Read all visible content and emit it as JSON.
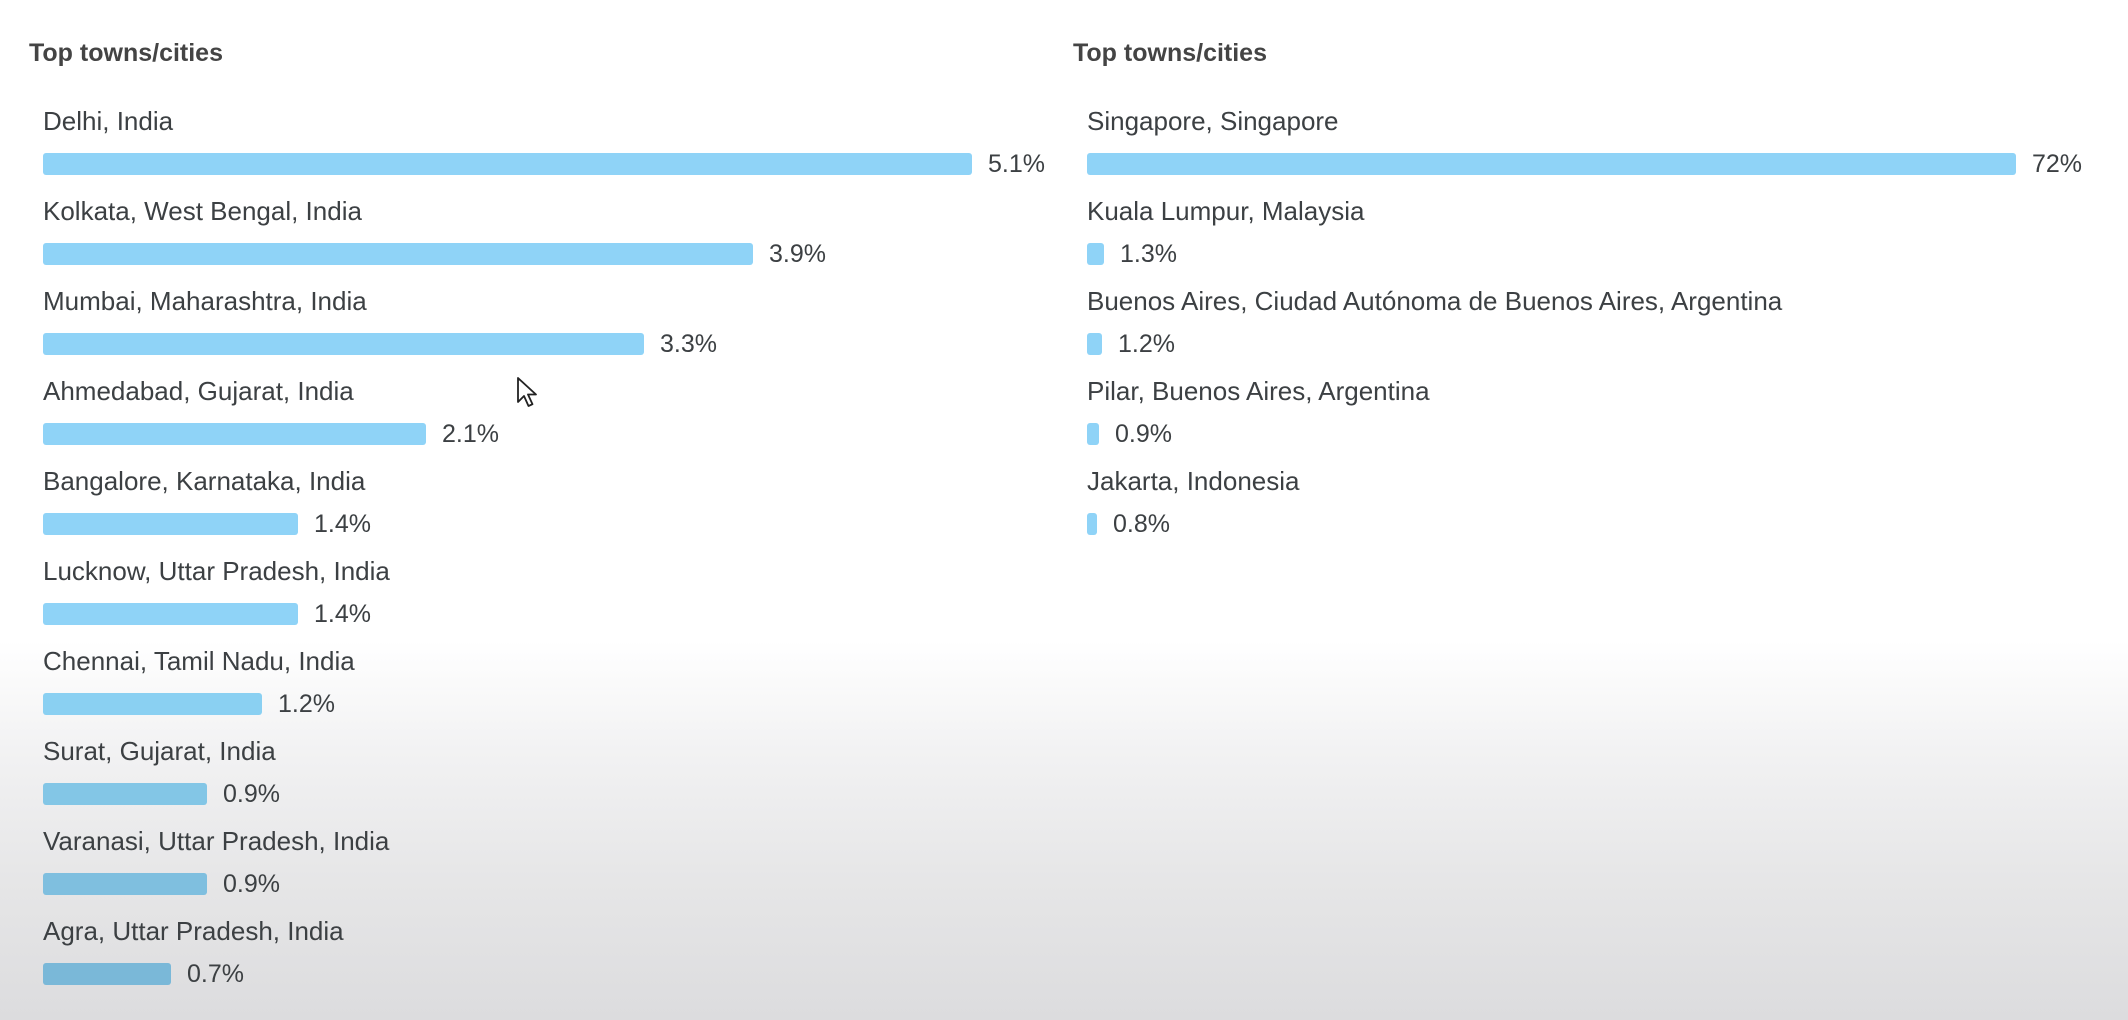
{
  "left_panel": {
    "title": "Top towns/cities",
    "items": [
      {
        "city": "Delhi, India",
        "value_label": "5.1%",
        "value": 5.1,
        "bar_color": "#8fd3f7"
      },
      {
        "city": "Kolkata, West Bengal, India",
        "value_label": "3.9%",
        "value": 3.9,
        "bar_color": "#8fd3f7"
      },
      {
        "city": "Mumbai, Maharashtra, India",
        "value_label": "3.3%",
        "value": 3.3,
        "bar_color": "#8fd3f7"
      },
      {
        "city": "Ahmedabad, Gujarat, India",
        "value_label": "2.1%",
        "value": 2.1,
        "bar_color": "#8fd3f7"
      },
      {
        "city": "Bangalore, Karnataka, India",
        "value_label": "1.4%",
        "value": 1.4,
        "bar_color": "#8fd3f7"
      },
      {
        "city": "Lucknow, Uttar Pradesh, India",
        "value_label": "1.4%",
        "value": 1.4,
        "bar_color": "#8fd3f7"
      },
      {
        "city": "Chennai, Tamil Nadu, India",
        "value_label": "1.2%",
        "value": 1.2,
        "bar_color": "#8ad0f2"
      },
      {
        "city": "Surat, Gujarat, India",
        "value_label": "0.9%",
        "value": 0.9,
        "bar_color": "#83c6e6"
      },
      {
        "city": "Varanasi, Uttar Pradesh, India",
        "value_label": "0.9%",
        "value": 0.9,
        "bar_color": "#7fbfdf"
      },
      {
        "city": "Agra, Uttar Pradesh, India",
        "value_label": "0.7%",
        "value": 0.7,
        "bar_color": "#7ab8d8"
      }
    ]
  },
  "right_panel": {
    "title": "Top towns/cities",
    "items": [
      {
        "city": "Singapore, Singapore",
        "value_label": "72%",
        "value": 72,
        "bar_color": "#8fd3f7"
      },
      {
        "city": "Kuala Lumpur, Malaysia",
        "value_label": "1.3%",
        "value": 1.3,
        "bar_color": "#8fd3f7"
      },
      {
        "city": "Buenos Aires, Ciudad Autónoma de Buenos Aires, Argentina",
        "value_label": "1.2%",
        "value": 1.2,
        "bar_color": "#8fd3f7"
      },
      {
        "city": "Pilar, Buenos Aires, Argentina",
        "value_label": "0.9%",
        "value": 0.9,
        "bar_color": "#8fd3f7"
      },
      {
        "city": "Jakarta, Indonesia",
        "value_label": "0.8%",
        "value": 0.8,
        "bar_color": "#8fd3f7"
      }
    ]
  },
  "cursor_icon": "mouse-pointer-icon"
}
